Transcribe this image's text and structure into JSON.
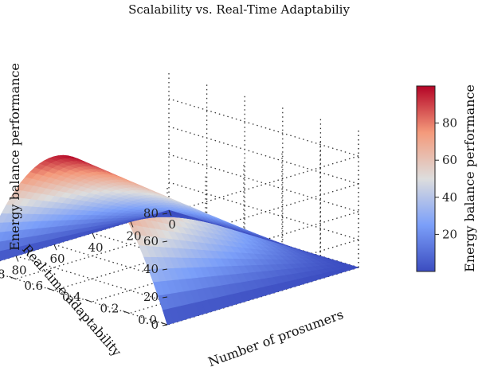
{
  "chart_data": {
    "type": "surface3d",
    "title": "Scalability vs. Real-Time Adaptabiliy",
    "xlabel": "Number of prosumers",
    "ylabel": "Real-time adaptability",
    "zlabel": "Energy balance performance",
    "x_range": [
      0,
      100
    ],
    "y_range": [
      0.0,
      1.0
    ],
    "z_range": [
      0,
      100
    ],
    "x_ticks": [
      "0",
      "20",
      "40",
      "60",
      "80",
      "100"
    ],
    "y_ticks": [
      "0.0",
      "0.2",
      "0.4",
      "0.6",
      "0.8",
      "1.0"
    ],
    "z_ticks": [
      "0",
      "20",
      "40",
      "60",
      "80"
    ],
    "colormap": "coolwarm",
    "colorbar": {
      "label": "Energy balance performance",
      "ticks": [
        "20",
        "40",
        "60",
        "80"
      ],
      "range": [
        0,
        100
      ]
    },
    "surface": {
      "formula": "z = 100 * (x/100) * (1 - y) * 4 * y",
      "peak": {
        "x": 100,
        "y": 0.5,
        "z": 100
      },
      "sample_points": [
        {
          "x": 0,
          "y": 0.5,
          "z": 0
        },
        {
          "x": 50,
          "y": 0.5,
          "z": 50
        },
        {
          "x": 100,
          "y": 0.0,
          "z": 0
        },
        {
          "x": 100,
          "y": 0.25,
          "z": 75
        },
        {
          "x": 100,
          "y": 0.75,
          "z": 75
        },
        {
          "x": 100,
          "y": 1.0,
          "z": 0
        }
      ]
    },
    "grid": true,
    "colors": {
      "low": "#3b4cc0",
      "mid": "#dddddd",
      "high": "#b40426"
    }
  }
}
